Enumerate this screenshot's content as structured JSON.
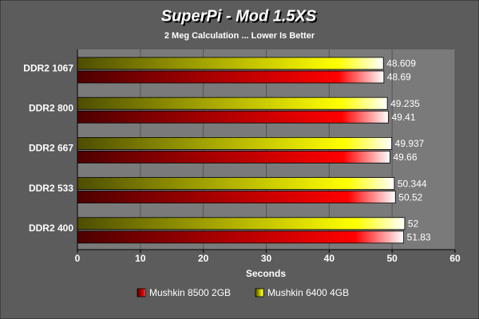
{
  "chart_data": {
    "type": "hbar",
    "title": "SuperPi - Mod 1.5XS",
    "subtitle": "2 Meg Calculation ... Lower Is Better",
    "x_label": "Seconds",
    "categories": [
      "DDR2 1067",
      "DDR2 800",
      "DDR2 667",
      "DDR2 533",
      "DDR2 400"
    ],
    "series": [
      {
        "name": "Mushkin 8500 2GB",
        "color": "#ff0000",
        "values": [
          48.69,
          49.41,
          49.66,
          50.52,
          51.83
        ]
      },
      {
        "name": "Mushkin 6400 4GB",
        "color": "#ffff00",
        "values": [
          48.609,
          49.235,
          49.937,
          50.344,
          52
        ]
      }
    ],
    "xlim": [
      0,
      60
    ],
    "xticks": [
      0,
      10,
      20,
      30,
      40,
      50,
      60
    ],
    "grid": true,
    "legend": "bottom"
  }
}
